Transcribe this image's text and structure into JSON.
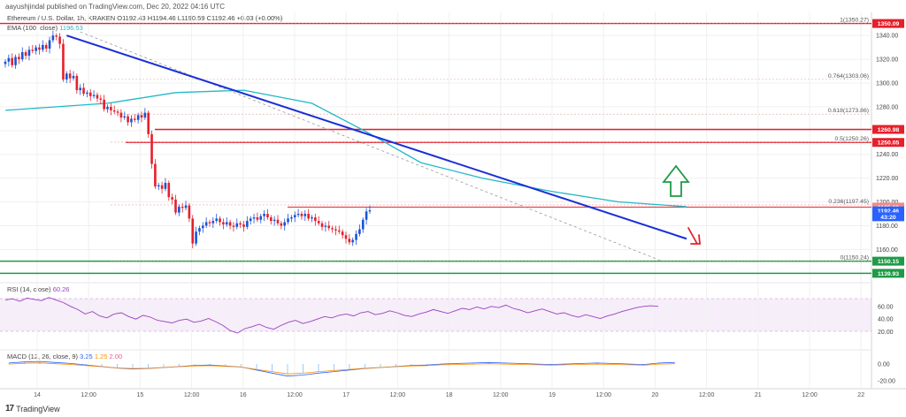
{
  "header": {
    "published": "aayushjindal published on TradingView.com, Dec 20, 2022 04:16 UTC"
  },
  "legend": {
    "symbol": "Ethereum / U.S. Dollar, 1h, KRAKEN",
    "ohlc": "O1192.43 H1194.46 L1190.59 C1192.46 +0.03 (+0.00%)",
    "ema_label": "EMA (100, close)",
    "ema_value": "1196.53",
    "rsi_label": "RSI (14, close)",
    "rsi_value": "60.26",
    "macd_label": "MACD (12, 26, close, 9)",
    "macd_v1": "3.25",
    "macd_v2": "1.25",
    "macd_v3": "2.00"
  },
  "footer": {
    "brand": "TradingView"
  },
  "chart_data": {
    "type": "candlestick",
    "xaxis_ticks": [
      "14",
      "12:00",
      "15",
      "12:00",
      "16",
      "12:00",
      "17",
      "12:00",
      "18",
      "12:00",
      "19",
      "12:00",
      "20",
      "12:00",
      "21",
      "12:00",
      "22"
    ],
    "price_ticks": [
      "1340.00",
      "1320.00",
      "1300.00",
      "1280.00",
      "1260.00",
      "1240.00",
      "1220.00",
      "1200.00",
      "1180.00",
      "1160.00"
    ],
    "price_ylim": [
      1135,
      1355
    ],
    "rsi_ticks": [
      "60.00",
      "40.00",
      "20.00"
    ],
    "macd_ticks": [
      "0.00",
      "-20.00"
    ],
    "fib_levels": [
      {
        "label": "1(1350.27)",
        "value": 1350.27
      },
      {
        "label": "0.764(1303.06)",
        "value": 1303.06
      },
      {
        "label": "0.618(1273.86)",
        "value": 1273.86
      },
      {
        "label": "0.5(1250.26)",
        "value": 1250.26
      },
      {
        "label": "0.236(1197.45)",
        "value": 1197.45
      },
      {
        "label": "0(1150.24)",
        "value": 1150.24
      }
    ],
    "price_badges": [
      {
        "text": "1350.09",
        "value": 1350.09,
        "color": "#e5202b"
      },
      {
        "text": "1260.98",
        "value": 1260.98,
        "color": "#e5202b"
      },
      {
        "text": "1250.05",
        "value": 1250.05,
        "color": "#e5202b"
      },
      {
        "text": "1195.66",
        "value": 1195.66,
        "color": "#f28a8a"
      },
      {
        "text": "1192.46",
        "value": 1192.46,
        "color": "#2962ff"
      },
      {
        "text": "43:20",
        "value": 1187.5,
        "color": "#2962ff"
      },
      {
        "text": "1150.15",
        "value": 1150.15,
        "color": "#1f9a47"
      },
      {
        "text": "1139.93",
        "value": 1139.93,
        "color": "#1f9a47"
      }
    ],
    "horizontal_lines": [
      {
        "value": 1350.09,
        "color": "#e5202b"
      },
      {
        "value": 1260.98,
        "color": "#e5202b"
      },
      {
        "value": 1250.05,
        "color": "#e5202b"
      },
      {
        "value": 1195.66,
        "color": "#e5202b"
      },
      {
        "value": 1150.15,
        "color": "#1f9a47"
      },
      {
        "value": 1139.93,
        "color": "#1f9a47"
      }
    ],
    "closes": [
      1318,
      1321,
      1315,
      1322,
      1320,
      1326,
      1323,
      1328,
      1327,
      1330,
      1328,
      1332,
      1329,
      1336,
      1340,
      1339,
      1333,
      1303,
      1308,
      1304,
      1306,
      1294,
      1296,
      1291,
      1292,
      1289,
      1290,
      1287,
      1286,
      1278,
      1280,
      1277,
      1276,
      1275,
      1271,
      1272,
      1267,
      1270,
      1269,
      1273,
      1271,
      1275,
      1257,
      1232,
      1213,
      1214,
      1211,
      1216,
      1204,
      1202,
      1191,
      1196,
      1195,
      1197,
      1186,
      1165,
      1175,
      1178,
      1180,
      1183,
      1182,
      1184,
      1186,
      1183,
      1181,
      1183,
      1180,
      1179,
      1182,
      1181,
      1179,
      1184,
      1186,
      1187,
      1185,
      1188,
      1190,
      1187,
      1184,
      1185,
      1182,
      1180,
      1183,
      1186,
      1187,
      1189,
      1190,
      1188,
      1190,
      1186,
      1187,
      1184,
      1182,
      1179,
      1180,
      1178,
      1177,
      1176,
      1175,
      1172,
      1169,
      1166,
      1168,
      1173,
      1177,
      1185,
      1192,
      1193
    ],
    "ema_points": [
      [
        0,
        1277
      ],
      [
        30,
        1283
      ],
      [
        50,
        1292
      ],
      [
        70,
        1294
      ],
      [
        90,
        1283
      ],
      [
        106,
        1259
      ],
      [
        122,
        1233
      ],
      [
        140,
        1220
      ],
      [
        160,
        1209
      ],
      [
        180,
        1200
      ],
      [
        200,
        1196
      ]
    ],
    "trendline": [
      [
        18,
        1340
      ],
      [
        200,
        1169
      ]
    ],
    "dashed_line": [
      [
        22,
        1343
      ],
      [
        193,
        1150
      ]
    ],
    "arrows": [
      {
        "dir": "up",
        "color": "#1f9a47"
      },
      {
        "dir": "down",
        "color": "#e5202b"
      }
    ]
  }
}
